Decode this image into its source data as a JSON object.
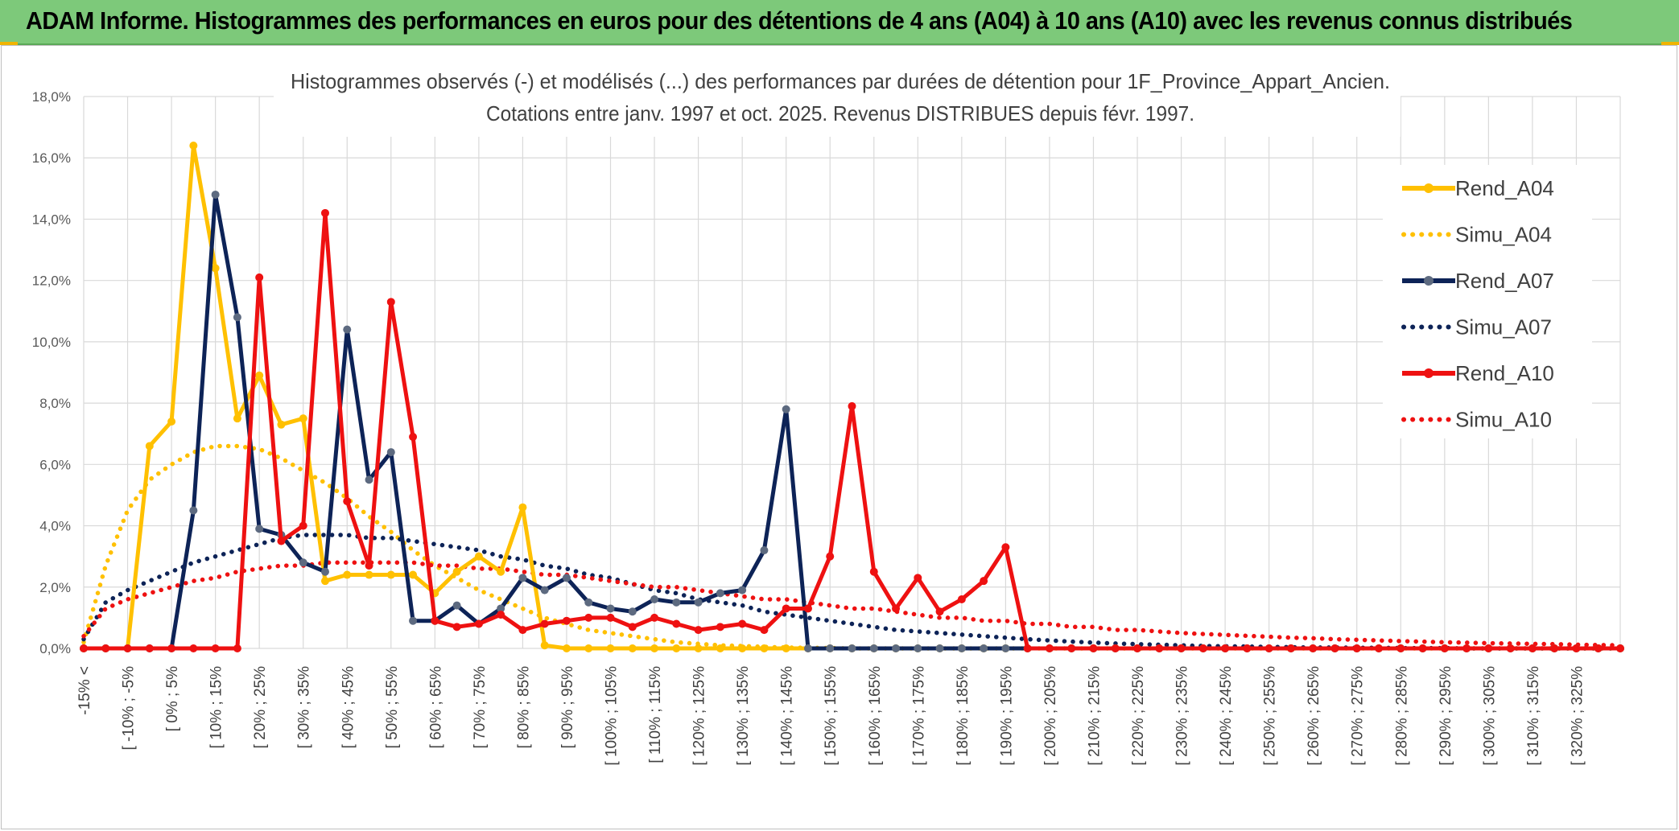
{
  "header": {
    "title": "ADAM Informe. Histogrammes des performances en euros pour des détentions de 4 ans (A04) à 10 ans (A10) avec les revenus connus distribués"
  },
  "chart_data": {
    "type": "line",
    "title": "Histogrammes observés (-) et modélisés (...) des performances par durées de détention pour 1F_Province_Appart_Ancien.",
    "subtitle": "Cotations entre janv. 1997 et oct. 2025. Revenus DISTRIBUES depuis févr. 1997.",
    "xlabel": "",
    "ylabel": "",
    "ylim": [
      0,
      18
    ],
    "yticks": [
      "0,0%",
      "2,0%",
      "4,0%",
      "6,0%",
      "8,0%",
      "10,0%",
      "12,0%",
      "14,0%",
      "16,0%",
      "18,0%"
    ],
    "xtick_labels": [
      "-15% <",
      "[ -10% ; -5%",
      "[ 0% ; 5%",
      "[ 10% ; 15%",
      "[ 20% ; 25%",
      "[ 30% ; 35%",
      "[ 40% ; 45%",
      "[ 50% ; 55%",
      "[ 60% ; 65%",
      "[ 70% ; 75%",
      "[ 80% ; 85%",
      "[ 90% ; 95%",
      "[ 100% ; 105%",
      "[ 110% ; 115%",
      "[ 120% ; 125%",
      "[ 130% ; 135%",
      "[ 140% ; 145%",
      "[ 150% ; 155%",
      "[ 160% ; 165%",
      "[ 170% ; 175%",
      "[ 180% ; 185%",
      "[ 190% ; 195%",
      "[ 200% ; 205%",
      "[ 210% ; 215%",
      "[ 220% ; 225%",
      "[ 230% ; 235%",
      "[ 240% ; 245%",
      "[ 250% ; 255%",
      "[ 260% ; 265%",
      "[ 270% ; 275%",
      "[ 280% ; 285%",
      "[ 290% ; 295%",
      "[ 300% ; 305%",
      "[ 310% ; 315%",
      "[ 320% ; 325%"
    ],
    "legend_position": "right",
    "grid": true,
    "series": [
      {
        "name": "Rend_A04",
        "style": "solid",
        "color": "#ffc000",
        "values": [
          0,
          0,
          0,
          6.6,
          7.4,
          16.4,
          12.4,
          7.5,
          8.9,
          7.3,
          7.5,
          2.2,
          2.4,
          2.4,
          2.4,
          2.4,
          1.8,
          2.5,
          3.0,
          2.5,
          4.6,
          0.1,
          0,
          0,
          0,
          0,
          0,
          0,
          0,
          0,
          0,
          0,
          0,
          0,
          0,
          0,
          0,
          0,
          0,
          0,
          0,
          0,
          0,
          0,
          0,
          0,
          0,
          0,
          0,
          0,
          0,
          0,
          0,
          0,
          0,
          0,
          0,
          0,
          0,
          0,
          0,
          0,
          0,
          0,
          0,
          0,
          0,
          0,
          0,
          0,
          0
        ]
      },
      {
        "name": "Simu_A04",
        "style": "dotted",
        "color": "#ffc000",
        "values": [
          0.2,
          2.7,
          4.5,
          5.5,
          6.0,
          6.4,
          6.6,
          6.6,
          6.5,
          6.2,
          5.8,
          5.4,
          4.9,
          4.3,
          3.8,
          3.2,
          2.7,
          2.3,
          1.9,
          1.6,
          1.3,
          1.0,
          0.8,
          0.6,
          0.5,
          0.4,
          0.3,
          0.2,
          0.15,
          0.1,
          0.08,
          0.05,
          0.03,
          0.02,
          0.01,
          0,
          0,
          0,
          0,
          0,
          0,
          0,
          0,
          0,
          0,
          0,
          0,
          0,
          0,
          0,
          0,
          0,
          0,
          0,
          0,
          0,
          0,
          0,
          0,
          0,
          0,
          0,
          0,
          0,
          0,
          0,
          0,
          0,
          0,
          0,
          0
        ]
      },
      {
        "name": "Rend_A07",
        "style": "solid",
        "color": "#0d2357",
        "values": [
          0,
          0,
          0,
          0,
          0,
          4.5,
          14.8,
          10.8,
          3.9,
          3.7,
          2.8,
          2.5,
          10.4,
          5.5,
          6.4,
          0.9,
          0.9,
          1.4,
          0.8,
          1.3,
          2.3,
          1.9,
          2.3,
          1.5,
          1.3,
          1.2,
          1.6,
          1.5,
          1.5,
          1.8,
          1.9,
          3.2,
          7.8,
          0,
          0,
          0,
          0,
          0,
          0,
          0,
          0,
          0,
          0,
          0,
          0,
          0,
          0,
          0,
          0,
          0,
          0,
          0,
          0,
          0,
          0,
          0,
          0,
          0,
          0,
          0,
          0,
          0,
          0,
          0,
          0,
          0,
          0,
          0,
          0,
          0,
          0
        ]
      },
      {
        "name": "Simu_A07",
        "style": "dotted",
        "color": "#0d2357",
        "values": [
          0.3,
          1.5,
          1.9,
          2.2,
          2.5,
          2.8,
          3.0,
          3.2,
          3.4,
          3.6,
          3.7,
          3.7,
          3.7,
          3.6,
          3.6,
          3.5,
          3.4,
          3.3,
          3.2,
          3.0,
          2.9,
          2.7,
          2.6,
          2.4,
          2.3,
          2.1,
          1.9,
          1.8,
          1.6,
          1.5,
          1.4,
          1.2,
          1.1,
          1.0,
          0.9,
          0.8,
          0.7,
          0.6,
          0.55,
          0.5,
          0.45,
          0.4,
          0.35,
          0.3,
          0.26,
          0.22,
          0.19,
          0.16,
          0.14,
          0.12,
          0.1,
          0.08,
          0.07,
          0.06,
          0.05,
          0.04,
          0.03,
          0.03,
          0.02,
          0.02,
          0.01,
          0.01,
          0.01,
          0,
          0,
          0,
          0,
          0,
          0,
          0,
          0
        ]
      },
      {
        "name": "Rend_A10",
        "style": "solid",
        "color": "#ee1111",
        "values": [
          0,
          0,
          0,
          0,
          0,
          0,
          0,
          0,
          12.1,
          3.5,
          4.0,
          14.2,
          4.8,
          2.7,
          11.3,
          6.9,
          0.9,
          0.7,
          0.8,
          1.1,
          0.6,
          0.8,
          0.9,
          1.0,
          1.0,
          0.7,
          1.0,
          0.8,
          0.6,
          0.7,
          0.8,
          0.6,
          1.3,
          1.3,
          3.0,
          7.9,
          2.5,
          1.3,
          2.3,
          1.2,
          1.6,
          2.2,
          3.3,
          0,
          0,
          0,
          0,
          0,
          0,
          0,
          0,
          0,
          0,
          0,
          0,
          0,
          0,
          0,
          0,
          0,
          0,
          0,
          0,
          0,
          0,
          0,
          0,
          0,
          0,
          0,
          0
        ]
      },
      {
        "name": "Simu_A10",
        "style": "dotted",
        "color": "#ee1111",
        "values": [
          0.4,
          1.3,
          1.6,
          1.8,
          2.0,
          2.2,
          2.3,
          2.5,
          2.6,
          2.7,
          2.7,
          2.8,
          2.8,
          2.8,
          2.8,
          2.8,
          2.7,
          2.7,
          2.6,
          2.6,
          2.5,
          2.4,
          2.4,
          2.3,
          2.2,
          2.1,
          2.0,
          2.0,
          1.9,
          1.8,
          1.7,
          1.6,
          1.6,
          1.5,
          1.4,
          1.3,
          1.3,
          1.2,
          1.1,
          1.0,
          1.0,
          0.9,
          0.9,
          0.8,
          0.8,
          0.7,
          0.7,
          0.6,
          0.6,
          0.55,
          0.5,
          0.47,
          0.44,
          0.41,
          0.38,
          0.35,
          0.33,
          0.3,
          0.28,
          0.26,
          0.24,
          0.22,
          0.2,
          0.19,
          0.17,
          0.16,
          0.15,
          0.14,
          0.12,
          0.11,
          0.1
        ]
      }
    ]
  }
}
